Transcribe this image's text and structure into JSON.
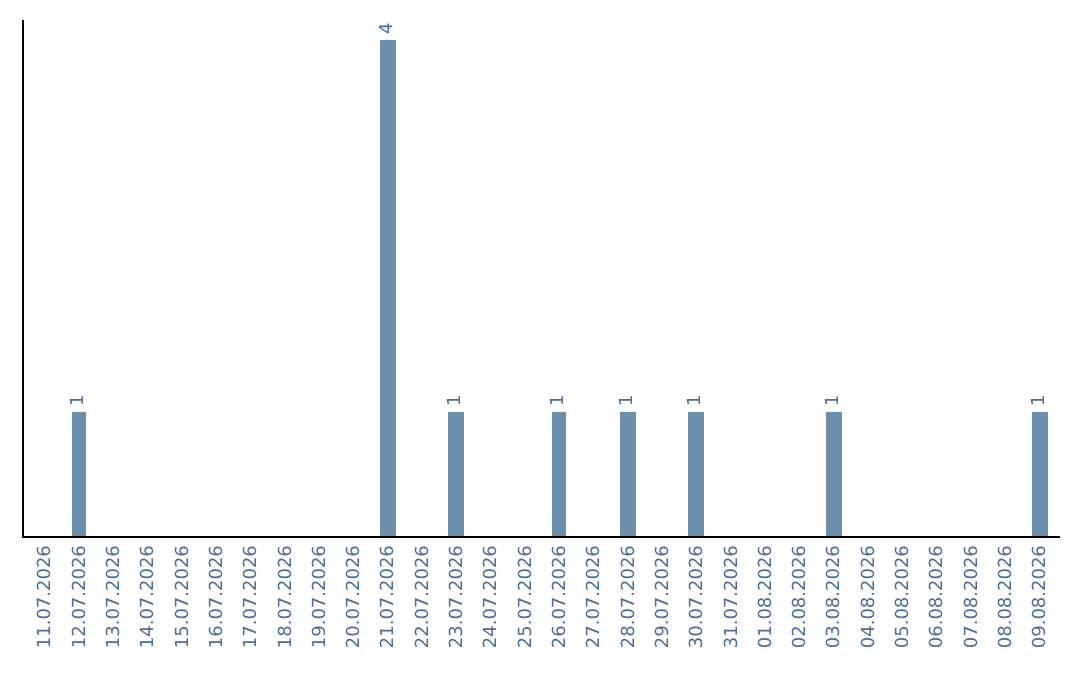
{
  "chart_data": {
    "type": "bar",
    "categories": [
      "11.07.2026",
      "12.07.2026",
      "13.07.2026",
      "14.07.2026",
      "15.07.2026",
      "16.07.2026",
      "17.07.2026",
      "18.07.2026",
      "19.07.2026",
      "20.07.2026",
      "21.07.2026",
      "22.07.2026",
      "23.07.2026",
      "24.07.2026",
      "25.07.2026",
      "26.07.2026",
      "27.07.2026",
      "28.07.2026",
      "29.07.2026",
      "30.07.2026",
      "31.07.2026",
      "01.08.2026",
      "02.08.2026",
      "03.08.2026",
      "04.08.2026",
      "05.08.2026",
      "06.08.2026",
      "07.08.2026",
      "08.08.2026",
      "09.08.2026"
    ],
    "values": [
      0,
      1,
      0,
      0,
      0,
      0,
      0,
      0,
      0,
      0,
      4,
      0,
      1,
      0,
      0,
      1,
      0,
      1,
      0,
      1,
      0,
      0,
      0,
      1,
      0,
      0,
      0,
      0,
      0,
      1
    ],
    "value_labels": [
      null,
      "1",
      null,
      null,
      null,
      null,
      null,
      null,
      null,
      null,
      "4",
      null,
      "1",
      null,
      null,
      "1",
      null,
      "1",
      null,
      "1",
      null,
      null,
      null,
      "1",
      null,
      null,
      null,
      null,
      null,
      "1"
    ],
    "color": "#6d8fae",
    "tick_labels": "x"
  }
}
